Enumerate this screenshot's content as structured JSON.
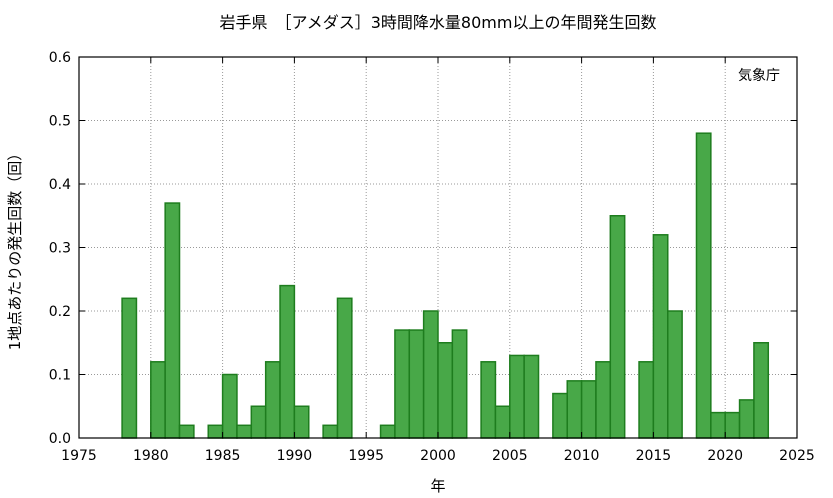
{
  "chart_data": {
    "type": "bar",
    "title": "岩手県　［アメダス］3時間降水量80mm以上の年間発生回数",
    "xlabel": "年",
    "ylabel": "1地点あたりの発生回数（回）",
    "annotation": "気象庁",
    "xlim": [
      1975,
      2025
    ],
    "ylim": [
      0,
      0.6
    ],
    "x_ticks": [
      "1975",
      "1980",
      "1985",
      "1990",
      "1995",
      "2000",
      "2005",
      "2010",
      "2015",
      "2020",
      "2025"
    ],
    "y_ticks": [
      "0.0",
      "0.1",
      "0.2",
      "0.3",
      "0.4",
      "0.5",
      "0.6"
    ],
    "grid": true,
    "bar_color": "#48a848",
    "bar_edge_color": "#1e7d1e",
    "categories": [
      1978,
      1979,
      1980,
      1981,
      1982,
      1983,
      1984,
      1985,
      1986,
      1987,
      1988,
      1989,
      1990,
      1991,
      1992,
      1993,
      1994,
      1995,
      1996,
      1997,
      1998,
      1999,
      2000,
      2001,
      2002,
      2003,
      2004,
      2005,
      2006,
      2007,
      2008,
      2009,
      2010,
      2011,
      2012,
      2013,
      2014,
      2015,
      2016,
      2017,
      2018,
      2019,
      2020,
      2021,
      2022,
      2023
    ],
    "values": [
      0.22,
      0,
      0.12,
      0.37,
      0.02,
      0,
      0.02,
      0.1,
      0.02,
      0.05,
      0.12,
      0.24,
      0.05,
      0,
      0.02,
      0.22,
      0,
      0,
      0.02,
      0.17,
      0.17,
      0.2,
      0.15,
      0.17,
      0,
      0.12,
      0.05,
      0.13,
      0.13,
      0,
      0.07,
      0.09,
      0.09,
      0.12,
      0.35,
      0,
      0.12,
      0.32,
      0.2,
      0,
      0.48,
      0.04,
      0.04,
      0.06,
      0.15,
      0
    ]
  }
}
